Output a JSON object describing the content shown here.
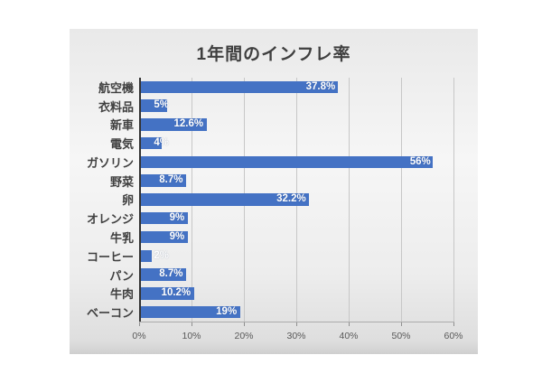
{
  "chart_data": {
    "type": "bar",
    "orientation": "horizontal",
    "title": "1年間のインフレ率",
    "categories": [
      "航空機",
      "衣料品",
      "新車",
      "電気",
      "ガソリン",
      "野菜",
      "卵",
      "オレンジ",
      "牛乳",
      "コーヒー",
      "パン",
      "牛肉",
      "ベーコン"
    ],
    "values": [
      37.8,
      5,
      12.6,
      4,
      56,
      8.7,
      32.2,
      9,
      9,
      2,
      8.7,
      10.2,
      19
    ],
    "value_labels": [
      "37.8%",
      "5%",
      "12.6%",
      "4%",
      "56%",
      "8.7%",
      "32.2%",
      "9%",
      "9%",
      "2%",
      "8.7%",
      "10.2%",
      "19%"
    ],
    "xlabel": "",
    "ylabel": "",
    "xlim": [
      0,
      60
    ],
    "x_ticks": [
      "0%",
      "10%",
      "20%",
      "30%",
      "40%",
      "50%",
      "60%"
    ],
    "grid": true,
    "legend": false,
    "bar_color": "#4472C4",
    "label_color": "#ffffff",
    "title_color": "#3f3f3f"
  }
}
